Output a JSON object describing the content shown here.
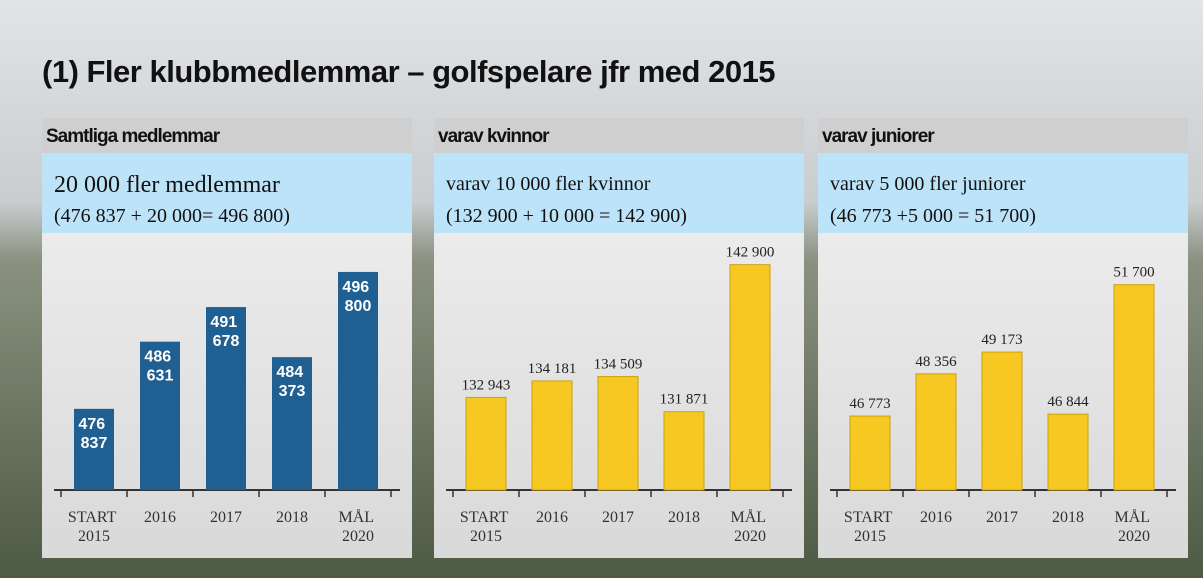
{
  "title": "(1) Fler klubbmedlemmar – golfspelare jfr med 2015",
  "chart_data": [
    {
      "type": "bar",
      "title": "Samtliga medlemmar",
      "annotations": [
        "20 000 fler medlemmar",
        "(476 837 + 20 000= 496 800)"
      ],
      "categories": [
        "START 2015",
        "2016",
        "2017",
        "2018",
        "MÅL 2020"
      ],
      "values": [
        476837,
        486631,
        491678,
        484373,
        496800
      ],
      "value_labels": [
        "476 837",
        "486 631",
        "491 678",
        "484 373",
        "496 800"
      ],
      "value_label_position": "inside",
      "color": "#1f5f91",
      "ylim": [
        465000,
        500000
      ]
    },
    {
      "type": "bar",
      "title": "varav kvinnor",
      "annotations": [
        "varav 10 000 fler kvinnor",
        "(132 900 + 10 000 = 142 900)"
      ],
      "categories": [
        "START 2015",
        "2016",
        "2017",
        "2018",
        "MÅL 2020"
      ],
      "values": [
        132943,
        134181,
        134509,
        131871,
        142900
      ],
      "value_labels": [
        "132 943",
        "134 181",
        "134 509",
        "131 871",
        "142 900"
      ],
      "value_label_position": "above",
      "color": "#f8c822",
      "ylim": [
        126000,
        144000
      ]
    },
    {
      "type": "bar",
      "title": "varav juniorer",
      "annotations": [
        "varav 5 000 fler juniorer",
        "(46 773 +5 000 = 51 700)"
      ],
      "categories": [
        "START 2015",
        "2016",
        "2017",
        "2018",
        "MÅL 2020"
      ],
      "values": [
        46773,
        48356,
        49173,
        46844,
        51700
      ],
      "value_labels": [
        "46 773",
        "48 356",
        "49 173",
        "46 844",
        "51 700"
      ],
      "value_label_position": "above",
      "color": "#f8c822",
      "ylim": [
        44000,
        53000
      ]
    }
  ]
}
